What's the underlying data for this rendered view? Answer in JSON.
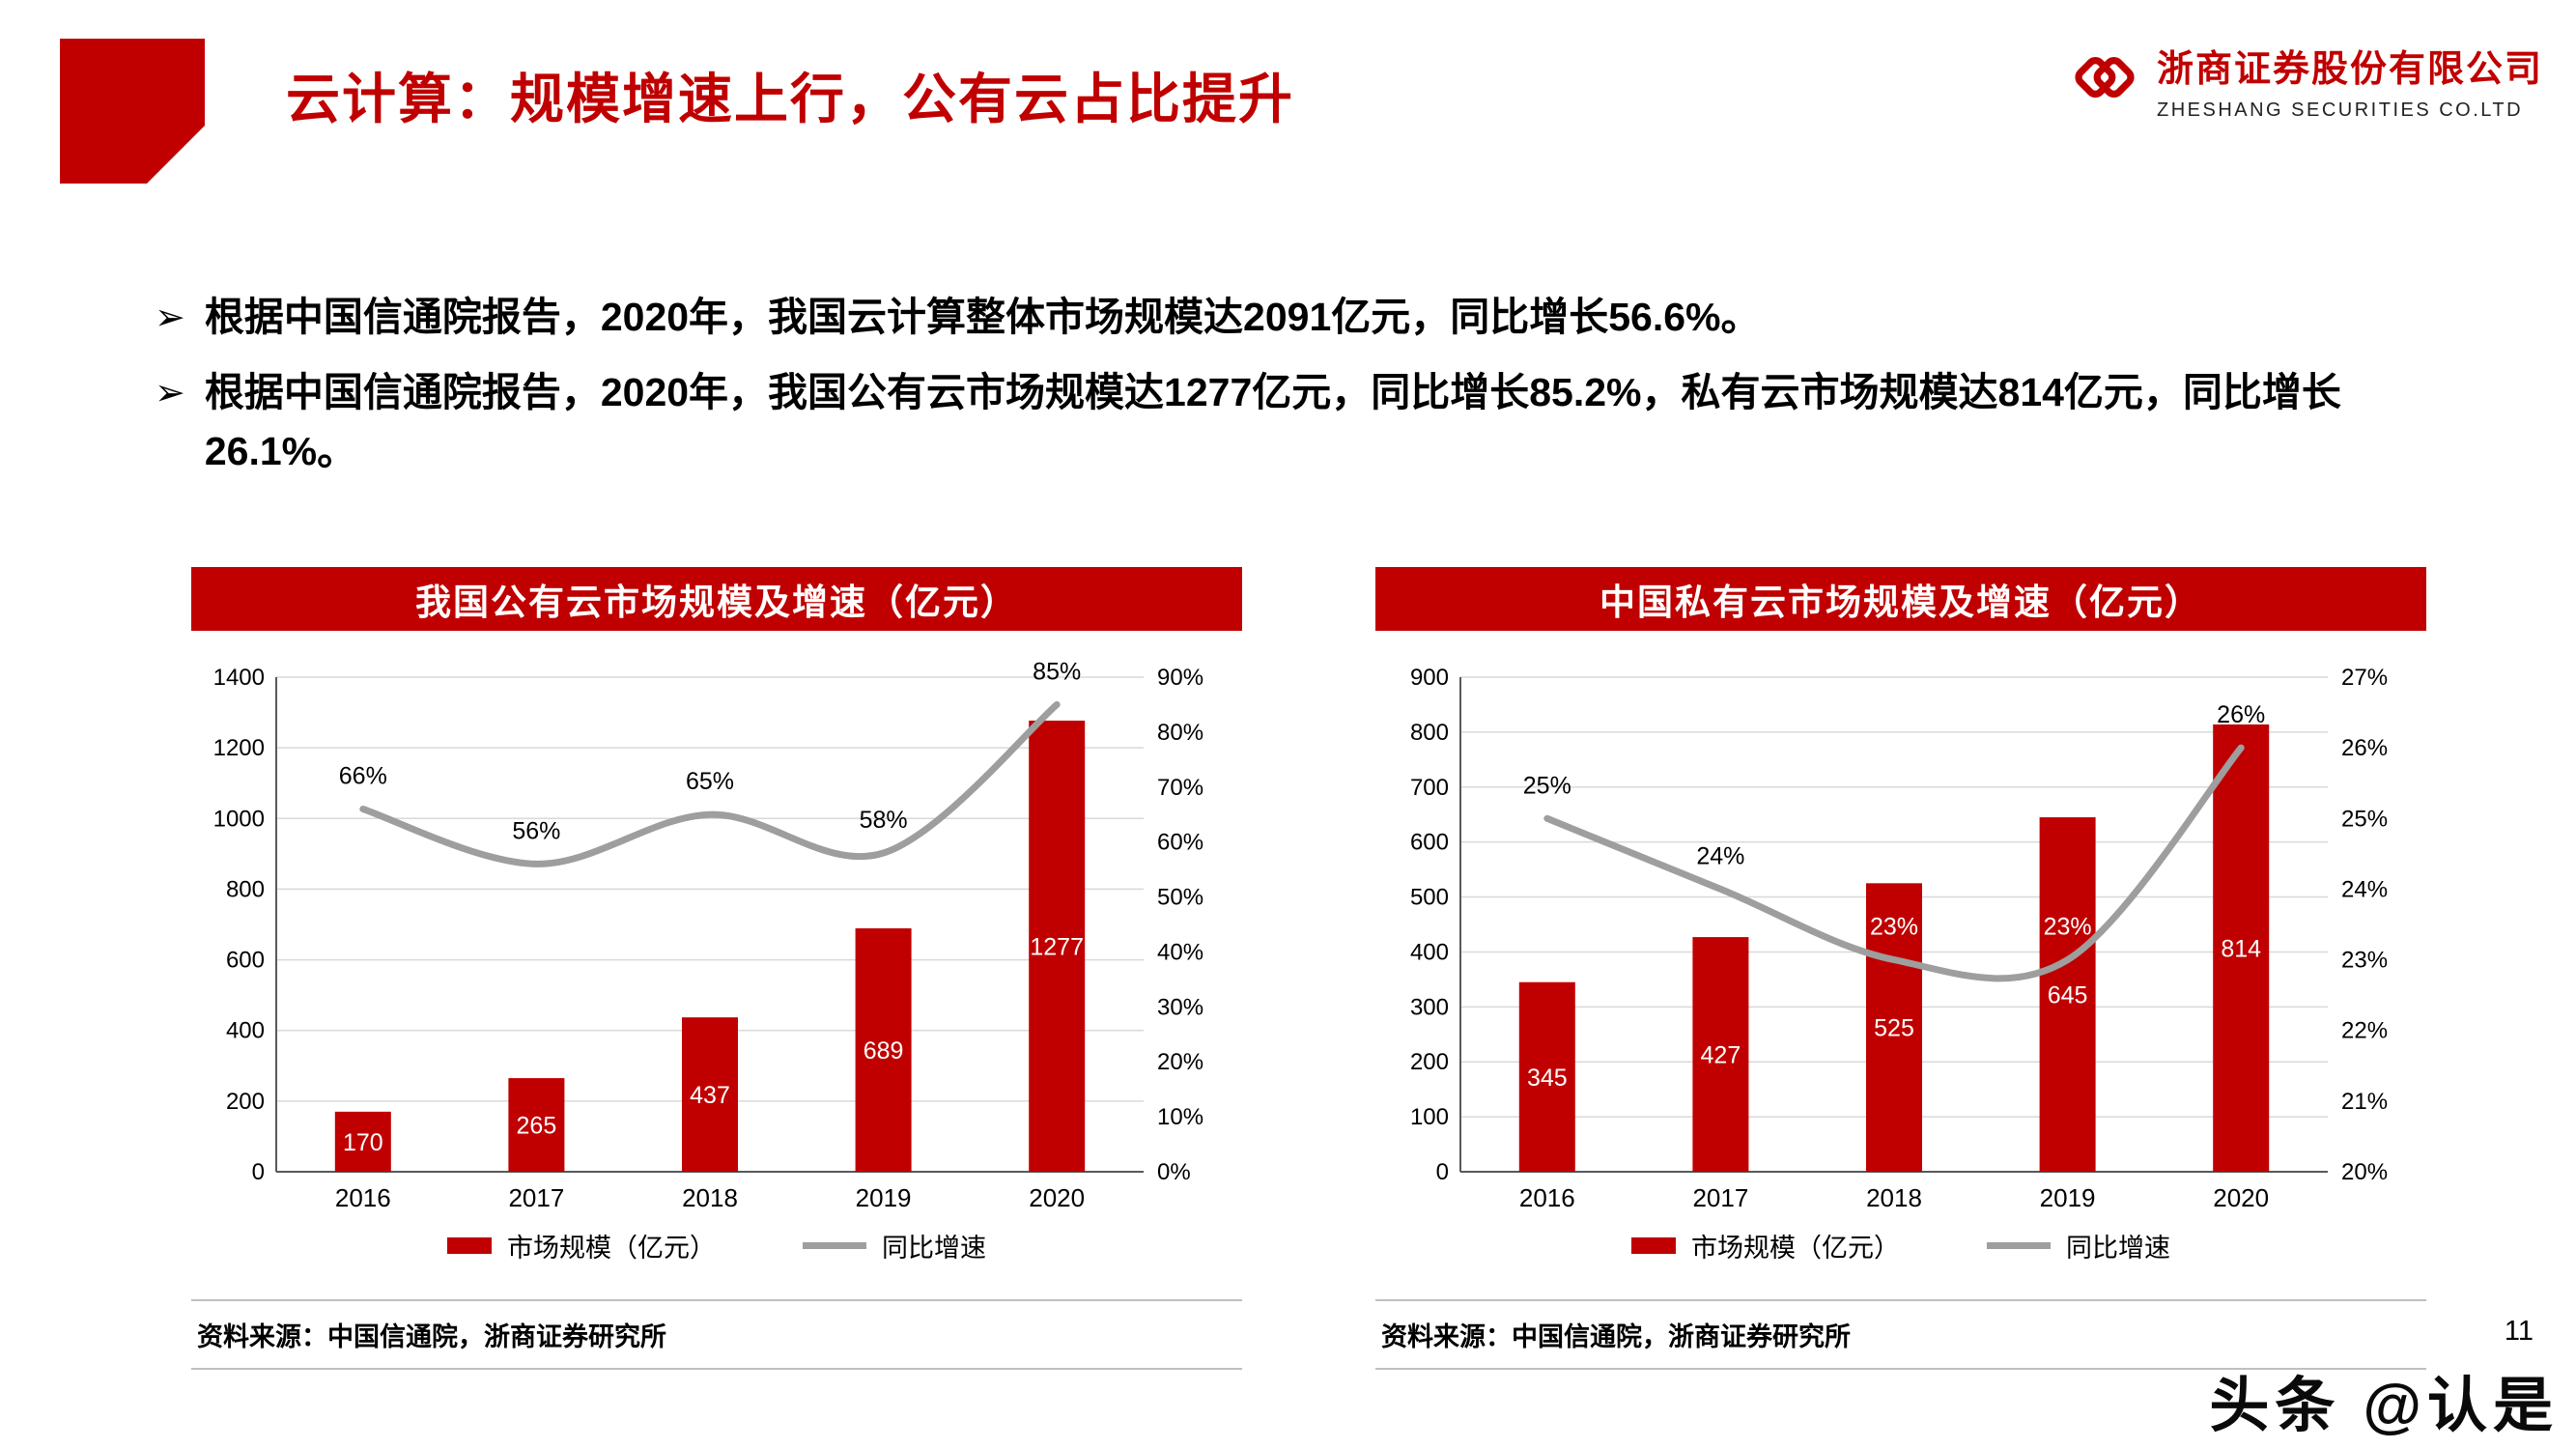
{
  "header": {
    "title": "云计算：规模增速上行，公有云占比提升",
    "company_cn": "浙商证券股份有限公司",
    "company_en": "ZHESHANG SECURITIES CO.LTD"
  },
  "ui": {
    "bullet_char": "➢"
  },
  "bullets": [
    "根据中国信通院报告，2020年，我国云计算整体市场规模达2091亿元，同比增长56.6%。",
    "根据中国信通院报告，2020年，我国公有云市场规模达1277亿元，同比增长85.2%，私有云市场规模达814亿元，同比增长26.1%。"
  ],
  "colors": {
    "accent_red": "#C00000",
    "line_gray": "#9E9E9E",
    "grid_gray": "#D9D9D9",
    "axis_gray": "#595959"
  },
  "chart_data": [
    {
      "type": "bar",
      "subtype": "bar+line combo",
      "title": "我国公有云市场规模及增速（亿元）",
      "categories": [
        "2016",
        "2017",
        "2018",
        "2019",
        "2020"
      ],
      "series": [
        {
          "name": "市场规模（亿元）",
          "type": "bar",
          "axis": "left",
          "values": [
            170,
            265,
            437,
            689,
            1277
          ]
        },
        {
          "name": "同比增速",
          "type": "line",
          "axis": "right",
          "values": [
            66,
            56,
            65,
            58,
            85
          ],
          "unit": "%"
        }
      ],
      "left_axis": {
        "min": 0,
        "max": 1400,
        "step": 200
      },
      "right_axis": {
        "min": 0,
        "max": 90,
        "step": 10,
        "unit": "%"
      },
      "grid": "horizontal",
      "legend_position": "bottom",
      "source": "资料来源：中国信通院，浙商证券研究所"
    },
    {
      "type": "bar",
      "subtype": "bar+line combo",
      "title": "中国私有云市场规模及增速（亿元）",
      "categories": [
        "2016",
        "2017",
        "2018",
        "2019",
        "2020"
      ],
      "series": [
        {
          "name": "市场规模（亿元）",
          "type": "bar",
          "axis": "left",
          "values": [
            345,
            427,
            525,
            645,
            814
          ]
        },
        {
          "name": "同比增速",
          "type": "line",
          "axis": "right",
          "values": [
            25,
            24,
            23,
            23,
            26
          ],
          "unit": "%"
        }
      ],
      "left_axis": {
        "min": 0,
        "max": 900,
        "step": 100
      },
      "right_axis": {
        "min": 20,
        "max": 27,
        "step": 1,
        "unit": "%"
      },
      "grid": "horizontal",
      "legend_position": "bottom",
      "source": "资料来源：中国信通院，浙商证券研究所"
    }
  ],
  "footer": {
    "page_number": "11",
    "watermark": "头条 @认是"
  }
}
